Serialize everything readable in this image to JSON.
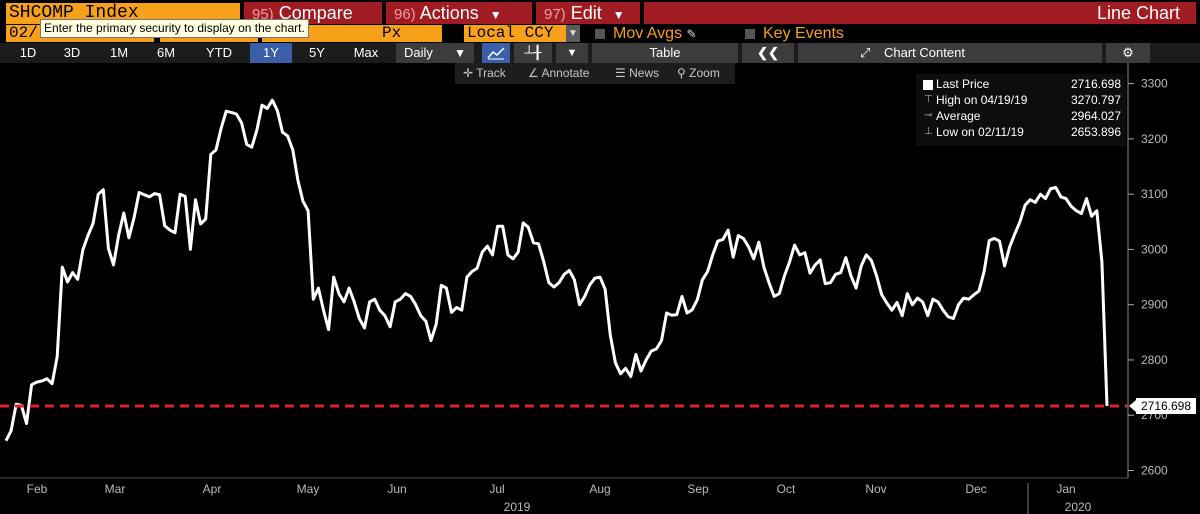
{
  "toolbar": {
    "ticker": "SHCOMP Index",
    "compare_num": "95)",
    "compare_label": "Compare",
    "actions_num": "96)",
    "actions_label": "Actions",
    "edit_num": "97)",
    "edit_label": "Edit",
    "chart_type": "Line Chart"
  },
  "options": {
    "start_date": "02/",
    "field": "Px",
    "currency": "Local CCY",
    "mov_avgs": "Mov Avgs",
    "key_events": "Key Events",
    "tooltip": "Enter the primary security to display on the chart."
  },
  "periods": [
    "1D",
    "3D",
    "1M",
    "6M",
    "YTD",
    "1Y",
    "5Y",
    "Max"
  ],
  "active_period": "1Y",
  "frequency": "Daily",
  "table_label": "Table",
  "chart_content_label": "Chart Content",
  "tools": {
    "track": "Track",
    "annotate": "Annotate",
    "news": "News",
    "zoom": "Zoom"
  },
  "legend": {
    "last_label": "Last Price",
    "last_value": "2716.698",
    "high_label": "High on 04/19/19",
    "high_value": "3270.797",
    "avg_label": "Average",
    "avg_value": "2964.027",
    "low_label": "Low on 02/11/19",
    "low_value": "2653.896"
  },
  "colors": {
    "line": "#ffffff",
    "last_price_line": "#e0202a",
    "accent": "#f7a11a",
    "menu": "#a01b22"
  },
  "chart_data": {
    "type": "line",
    "title": "",
    "ylim": [
      2570,
      3315
    ],
    "yticks": [
      2600,
      2700,
      2800,
      2900,
      3000,
      3100,
      3200,
      3300
    ],
    "month_labels": [
      "Feb",
      "Mar",
      "Apr",
      "May",
      "Jun",
      "Jul",
      "Aug",
      "Sep",
      "Oct",
      "Nov",
      "Dec",
      "Jan"
    ],
    "year_labels": [
      "2019",
      "2020"
    ],
    "last_price": 2716.698,
    "last_price_label": "2716.698",
    "series": [
      {
        "values": [
          2654,
          2672,
          2720,
          2718,
          2685,
          2755,
          2760,
          2762,
          2766,
          2757,
          2806,
          2968,
          2941,
          2958,
          2946,
          2999,
          3025,
          3047,
          3100,
          3108,
          3002,
          2972,
          3026,
          3066,
          3021,
          3057,
          3103,
          3099,
          3095,
          3101,
          3099,
          3043,
          3035,
          3030,
          3100,
          3096,
          3000,
          3090,
          3046,
          3055,
          3172,
          3180,
          3219,
          3250,
          3248,
          3245,
          3229,
          3190,
          3185,
          3216,
          3261,
          3255,
          3270,
          3251,
          3212,
          3205,
          3180,
          3125,
          3087,
          3070,
          2910,
          2930,
          2890,
          2855,
          2950,
          2920,
          2905,
          2930,
          2905,
          2875,
          2858,
          2905,
          2910,
          2890,
          2880,
          2860,
          2905,
          2910,
          2920,
          2915,
          2900,
          2880,
          2870,
          2835,
          2865,
          2935,
          2930,
          2886,
          2895,
          2890,
          2950,
          2960,
          2966,
          2995,
          3006,
          2990,
          3042,
          3042,
          2990,
          2983,
          2995,
          3048,
          3040,
          3012,
          3010,
          2978,
          2940,
          2932,
          2940,
          2955,
          2962,
          2945,
          2900,
          2915,
          2936,
          2948,
          2950,
          2928,
          2845,
          2795,
          2775,
          2785,
          2770,
          2810,
          2780,
          2800,
          2816,
          2820,
          2835,
          2885,
          2881,
          2882,
          2915,
          2885,
          2891,
          2909,
          2945,
          2960,
          2990,
          3015,
          3018,
          3035,
          2986,
          3025,
          3020,
          3005,
          2983,
          3013,
          2968,
          2940,
          2915,
          2920,
          2952,
          2977,
          3008,
          2990,
          2994,
          2957,
          2972,
          2981,
          2938,
          2940,
          2955,
          2958,
          2985,
          2952,
          2930,
          2970,
          2990,
          2980,
          2952,
          2918,
          2903,
          2890,
          2904,
          2880,
          2920,
          2900,
          2912,
          2905,
          2880,
          2910,
          2905,
          2890,
          2878,
          2875,
          2900,
          2912,
          2910,
          2918,
          2925,
          2960,
          3016,
          3020,
          3015,
          2970,
          3005,
          3028,
          3050,
          3080,
          3090,
          3085,
          3100,
          3092,
          3110,
          3112,
          3095,
          3092,
          3078,
          3070,
          3065,
          3092,
          3060,
          3070,
          2978,
          2716.698
        ]
      }
    ]
  }
}
